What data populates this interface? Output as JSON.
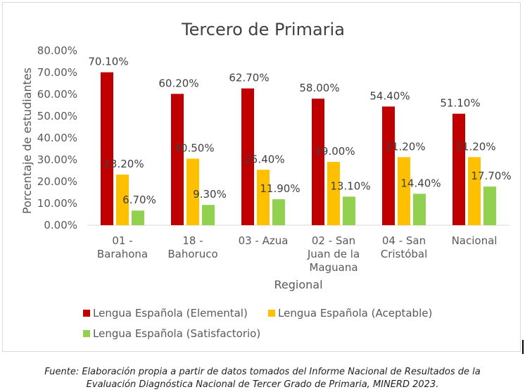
{
  "chart_data": {
    "type": "bar",
    "title": "Tercero de Primaria",
    "xlabel": "Regional",
    "ylabel": "Porcentaje de estudiantes",
    "ylim": [
      0,
      80
    ],
    "yticks": [
      "0.00%",
      "10.00%",
      "20.00%",
      "30.00%",
      "40.00%",
      "50.00%",
      "60.00%",
      "70.00%",
      "80.00%"
    ],
    "grid": false,
    "legend_position": "bottom",
    "categories": [
      [
        "01 -",
        "Barahona"
      ],
      [
        "18 -",
        "Bahoruco"
      ],
      [
        "03 - Azua"
      ],
      [
        "02 - San",
        "Juan de la",
        "Maguana"
      ],
      [
        "04 - San",
        "Cristóbal"
      ],
      [
        "Nacional"
      ]
    ],
    "series": [
      {
        "name": "Lengua Española (Elemental)",
        "color": "#c00000",
        "values": [
          70.1,
          60.2,
          62.7,
          58.0,
          54.4,
          51.1
        ],
        "labels": [
          "70.10%",
          "60.20%",
          "62.70%",
          "58.00%",
          "54.40%",
          "51.10%"
        ]
      },
      {
        "name": "Lengua Española (Aceptable)",
        "color": "#ffc000",
        "values": [
          23.2,
          30.5,
          25.4,
          29.0,
          31.2,
          31.2
        ],
        "labels": [
          "23.20%",
          "30.50%",
          "25.40%",
          "29.00%",
          "31.20%",
          "31.20%"
        ]
      },
      {
        "name": "Lengua Española (Satisfactorio)",
        "color": "#92d050",
        "values": [
          6.7,
          9.3,
          11.9,
          13.1,
          14.4,
          17.7
        ],
        "labels": [
          "6.70%",
          "9.30%",
          "11.90%",
          "13.10%",
          "14.40%",
          "17.70%"
        ]
      }
    ]
  },
  "source_note": {
    "line1": "Fuente: Elaboración propia a partir de datos tomados del Informe Nacional de Resultados de la",
    "line2": "Evaluación Diagnóstica Nacional de Tercer Grado de Primaria, MINERD 2023."
  }
}
